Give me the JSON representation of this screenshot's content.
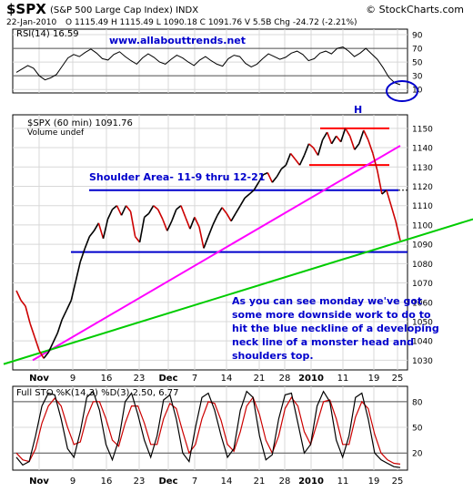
{
  "header": {
    "symbol": "$SPX",
    "name": "(S&P 500 Large Cap Index) INDX",
    "brand": "© StockCharts.com",
    "date": "22-Jan-2010",
    "ohlc": "O 1115.49  H 1115.49  L 1090.18  C 1091.76  V 5.5B  Chg -24.72 (-2.21%)"
  },
  "colors": {
    "price_up": "#000000",
    "price_down": "#cc0000",
    "neckline": "#0000cc",
    "head_lines": "#ff0000",
    "uptrend_magenta": "#ff00ff",
    "uptrend_green": "#00cc00",
    "annotation": "#0000cc",
    "rsi_line": "#000000",
    "sto_k": "#000000",
    "sto_d": "#cc0000"
  },
  "chart_data": [
    {
      "type": "line",
      "panel": "rsi",
      "title": "RSI(14) 16.59",
      "yticks": [
        10,
        30,
        50,
        70,
        90
      ],
      "ylim": [
        5,
        98
      ],
      "reference_lines": [
        30,
        70
      ],
      "series": [
        {
          "values": [
            35,
            40,
            45,
            41,
            30,
            24,
            27,
            32,
            44,
            56,
            61,
            58,
            64,
            69,
            63,
            55,
            53,
            61,
            65,
            58,
            52,
            47,
            56,
            62,
            57,
            50,
            47,
            54,
            60,
            56,
            50,
            45,
            53,
            58,
            52,
            47,
            44,
            55,
            60,
            58,
            48,
            43,
            47,
            55,
            62,
            58,
            54,
            57,
            63,
            66,
            61,
            52,
            55,
            63,
            66,
            62,
            70,
            72,
            66,
            58,
            63,
            70,
            62,
            54,
            42,
            28,
            20,
            17
          ]
        }
      ],
      "annotation": "www.allabouttrends.net"
    },
    {
      "type": "line",
      "panel": "price",
      "title": "$SPX (60 min) 1091.76",
      "subtitle": "Volume undef",
      "yticks": [
        1030,
        1040,
        1050,
        1060,
        1070,
        1080,
        1090,
        1100,
        1110,
        1120,
        1130,
        1140,
        1150
      ],
      "ylim": [
        1025,
        1157
      ],
      "xticks": [
        "Nov",
        "9",
        "16",
        "23",
        "Dec",
        "7",
        "14",
        "21",
        "28",
        "2010",
        "11",
        "19",
        "25"
      ],
      "series": [
        {
          "values": [
            1066,
            1061,
            1058,
            1049,
            1042,
            1035,
            1031,
            1034,
            1039,
            1044,
            1051,
            1056,
            1061,
            1071,
            1081,
            1088,
            1094,
            1097,
            1101,
            1093,
            1103,
            1108,
            1110,
            1105,
            1110,
            1107,
            1094,
            1091,
            1104,
            1106,
            1110,
            1108,
            1103,
            1097,
            1102,
            1108,
            1110,
            1104,
            1098,
            1104,
            1099,
            1088,
            1094,
            1100,
            1105,
            1109,
            1106,
            1102,
            1106,
            1110,
            1114,
            1116,
            1118,
            1122,
            1126,
            1127,
            1122,
            1125,
            1129,
            1131,
            1137,
            1134,
            1131,
            1136,
            1142,
            1140,
            1136,
            1144,
            1148,
            1142,
            1146,
            1143,
            1150,
            1146,
            1139,
            1142,
            1149,
            1144,
            1137,
            1128,
            1116,
            1118,
            1110,
            1102,
            1092
          ]
        }
      ],
      "levels": {
        "head_top": 1150,
        "shoulder_line": 1131,
        "shoulder_area": 1118,
        "neckline": 1086
      },
      "labels": {
        "head": "H",
        "shoulder_area": "Shoulder Area- 11-9 thru 12-21",
        "comment": [
          "As you can see monday we've got",
          "some more downside work to do to",
          "hit the blue neckline of a developing",
          "neck line of a monster head and",
          "shoulders top."
        ]
      }
    },
    {
      "type": "line",
      "panel": "stochastic",
      "title": "Full STO %K(14,3) %D(3) 2.50, 6.77",
      "yticks": [
        20,
        50,
        80
      ],
      "ylim": [
        0,
        98
      ],
      "reference_lines": [
        20,
        80
      ],
      "xticks": [
        "Nov",
        "9",
        "16",
        "23",
        "Dec",
        "7",
        "14",
        "21",
        "28",
        "2010",
        "11",
        "19",
        "25"
      ],
      "series": [
        {
          "name": "%K",
          "values": [
            15,
            6,
            10,
            40,
            75,
            90,
            88,
            60,
            25,
            15,
            45,
            85,
            92,
            70,
            30,
            12,
            35,
            80,
            90,
            65,
            35,
            15,
            40,
            82,
            88,
            60,
            20,
            10,
            50,
            85,
            90,
            70,
            40,
            15,
            25,
            70,
            92,
            85,
            40,
            12,
            18,
            60,
            88,
            90,
            55,
            20,
            30,
            75,
            92,
            80,
            35,
            15,
            40,
            85,
            90,
            60,
            20,
            12,
            8,
            4,
            3
          ]
        },
        {
          "name": "%D",
          "values": [
            20,
            12,
            10,
            25,
            55,
            75,
            84,
            75,
            50,
            30,
            33,
            62,
            80,
            80,
            60,
            35,
            28,
            55,
            75,
            75,
            55,
            30,
            30,
            60,
            78,
            72,
            45,
            20,
            30,
            60,
            80,
            78,
            58,
            30,
            22,
            45,
            75,
            85,
            65,
            35,
            20,
            40,
            72,
            85,
            75,
            45,
            30,
            55,
            80,
            82,
            60,
            30,
            30,
            62,
            80,
            72,
            42,
            20,
            12,
            8,
            7
          ]
        }
      ]
    }
  ]
}
